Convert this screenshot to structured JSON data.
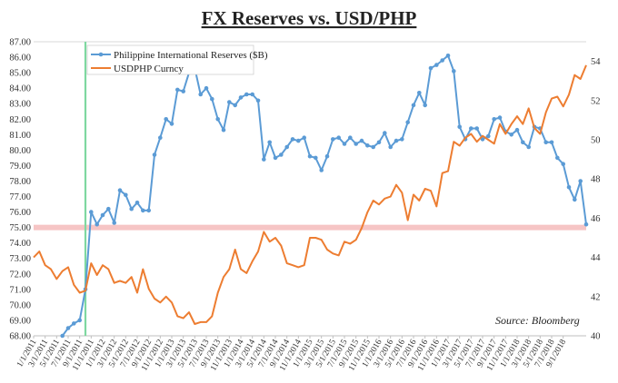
{
  "chart_data": {
    "type": "line",
    "title": "FX Reserves vs. USD/PHP",
    "source_note": "Source: Bloomberg",
    "y_left": {
      "min": 68,
      "max": 87,
      "ticks": [
        "87.00",
        "86.00",
        "85.00",
        "84.00",
        "83.00",
        "82.00",
        "81.00",
        "80.00",
        "79.00",
        "78.00",
        "77.00",
        "76.00",
        "75.00",
        "74.00",
        "73.00",
        "72.00",
        "71.00",
        "70.00",
        "69.00",
        "68.00"
      ]
    },
    "y_right": {
      "min": 40,
      "max": 55,
      "ticks": [
        "54",
        "52",
        "50",
        "48",
        "46",
        "44",
        "42",
        "40"
      ]
    },
    "x_ticks": [
      "1/1/2011",
      "3/1/2011",
      "5/1/2011",
      "7/1/2011",
      "9/1/2011",
      "11/1/2011",
      "1/1/2012",
      "3/1/2012",
      "5/1/2012",
      "7/1/2012",
      "9/1/2012",
      "11/1/2012",
      "1/1/2013",
      "3/1/2013",
      "5/1/2013",
      "7/1/2013",
      "9/1/2013",
      "11/1/2013",
      "1/1/2014",
      "3/1/2014",
      "5/1/2014",
      "7/1/2014",
      "9/1/2014",
      "11/1/2014",
      "1/1/2015",
      "3/1/2015",
      "5/1/2015",
      "7/1/2015",
      "9/1/2015",
      "11/1/2015",
      "1/1/2016",
      "3/1/2016",
      "5/1/2016",
      "7/1/2016",
      "9/1/2016",
      "11/1/2016",
      "1/1/2017",
      "3/1/2017",
      "5/1/2017",
      "7/1/2017",
      "9/1/2017",
      "11/1/2017",
      "1/1/2018",
      "3/1/2018",
      "5/1/2018",
      "7/1/2018",
      "9/1/2018"
    ],
    "series": [
      {
        "name": "Philippine International Reserves ($B)",
        "axis": "left",
        "color": "#5b9bd5",
        "markers": true,
        "points": [
          [
            5,
            68.0
          ],
          [
            6,
            68.5
          ],
          [
            7,
            68.8
          ],
          [
            8,
            69.0
          ],
          [
            9,
            71.0
          ],
          [
            10,
            76.0
          ],
          [
            11,
            75.2
          ],
          [
            12,
            75.8
          ],
          [
            13,
            76.2
          ],
          [
            14,
            75.3
          ],
          [
            15,
            77.4
          ],
          [
            16,
            77.1
          ],
          [
            17,
            76.2
          ],
          [
            18,
            76.6
          ],
          [
            19,
            76.1
          ],
          [
            20,
            76.1
          ],
          [
            21,
            79.7
          ],
          [
            22,
            80.8
          ],
          [
            23,
            82.0
          ],
          [
            24,
            81.7
          ],
          [
            25,
            83.9
          ],
          [
            26,
            83.8
          ],
          [
            27,
            85.0
          ],
          [
            28,
            85.3
          ],
          [
            29,
            83.6
          ],
          [
            30,
            84.0
          ],
          [
            31,
            83.3
          ],
          [
            32,
            82.0
          ],
          [
            33,
            81.3
          ],
          [
            34,
            83.1
          ],
          [
            35,
            82.9
          ],
          [
            36,
            83.4
          ],
          [
            37,
            83.6
          ],
          [
            38,
            83.6
          ],
          [
            39,
            83.2
          ],
          [
            40,
            79.4
          ],
          [
            41,
            80.5
          ],
          [
            42,
            79.5
          ],
          [
            43,
            79.7
          ],
          [
            44,
            80.2
          ],
          [
            45,
            80.7
          ],
          [
            46,
            80.6
          ],
          [
            47,
            80.8
          ],
          [
            48,
            79.6
          ],
          [
            49,
            79.5
          ],
          [
            50,
            78.7
          ],
          [
            51,
            79.6
          ],
          [
            52,
            80.7
          ],
          [
            53,
            80.8
          ],
          [
            54,
            80.4
          ],
          [
            55,
            80.8
          ],
          [
            56,
            80.4
          ],
          [
            57,
            80.6
          ],
          [
            58,
            80.3
          ],
          [
            59,
            80.2
          ],
          [
            60,
            80.5
          ],
          [
            61,
            81.1
          ],
          [
            62,
            80.2
          ],
          [
            63,
            80.6
          ],
          [
            64,
            80.7
          ],
          [
            65,
            81.8
          ],
          [
            66,
            82.9
          ],
          [
            67,
            83.7
          ],
          [
            68,
            82.9
          ],
          [
            69,
            85.3
          ],
          [
            70,
            85.5
          ],
          [
            71,
            85.8
          ],
          [
            72,
            86.1
          ],
          [
            73,
            85.1
          ],
          [
            74,
            81.5
          ],
          [
            75,
            80.7
          ],
          [
            76,
            81.4
          ],
          [
            77,
            81.4
          ],
          [
            78,
            80.7
          ],
          [
            79,
            80.9
          ],
          [
            80,
            82.0
          ],
          [
            81,
            82.1
          ],
          [
            82,
            81.2
          ],
          [
            83,
            81.0
          ],
          [
            84,
            81.3
          ],
          [
            85,
            80.5
          ],
          [
            86,
            80.2
          ],
          [
            87,
            81.5
          ],
          [
            88,
            81.4
          ],
          [
            89,
            80.5
          ],
          [
            90,
            80.5
          ],
          [
            91,
            79.5
          ],
          [
            92,
            79.1
          ],
          [
            93,
            77.6
          ],
          [
            94,
            76.8
          ],
          [
            95,
            78.0
          ],
          [
            96,
            75.2
          ]
        ]
      },
      {
        "name": "USDPHP Curncy",
        "axis": "right",
        "color": "#ed7d31",
        "markers": false,
        "points": [
          [
            0,
            44.0
          ],
          [
            1,
            44.3
          ],
          [
            2,
            43.6
          ],
          [
            3,
            43.4
          ],
          [
            4,
            42.9
          ],
          [
            5,
            43.3
          ],
          [
            6,
            43.5
          ],
          [
            7,
            42.6
          ],
          [
            8,
            42.2
          ],
          [
            9,
            42.3
          ],
          [
            10,
            43.7
          ],
          [
            11,
            43.1
          ],
          [
            12,
            43.6
          ],
          [
            13,
            43.4
          ],
          [
            14,
            42.7
          ],
          [
            15,
            42.8
          ],
          [
            16,
            42.7
          ],
          [
            17,
            43.0
          ],
          [
            18,
            42.2
          ],
          [
            19,
            43.4
          ],
          [
            20,
            42.4
          ],
          [
            21,
            41.9
          ],
          [
            22,
            41.7
          ],
          [
            23,
            42.0
          ],
          [
            24,
            41.7
          ],
          [
            25,
            41.0
          ],
          [
            26,
            40.9
          ],
          [
            27,
            41.2
          ],
          [
            28,
            40.6
          ],
          [
            29,
            40.7
          ],
          [
            30,
            40.7
          ],
          [
            31,
            41.0
          ],
          [
            32,
            42.2
          ],
          [
            33,
            43.0
          ],
          [
            34,
            43.4
          ],
          [
            35,
            44.4
          ],
          [
            36,
            43.4
          ],
          [
            37,
            43.2
          ],
          [
            38,
            43.8
          ],
          [
            39,
            44.3
          ],
          [
            40,
            45.3
          ],
          [
            41,
            44.8
          ],
          [
            42,
            45.0
          ],
          [
            43,
            44.6
          ],
          [
            44,
            43.7
          ],
          [
            45,
            43.6
          ],
          [
            46,
            43.5
          ],
          [
            47,
            43.6
          ],
          [
            48,
            45.0
          ],
          [
            49,
            45.0
          ],
          [
            50,
            44.9
          ],
          [
            51,
            44.4
          ],
          [
            52,
            44.2
          ],
          [
            53,
            44.1
          ],
          [
            54,
            44.8
          ],
          [
            55,
            44.7
          ],
          [
            56,
            44.9
          ],
          [
            57,
            45.5
          ],
          [
            58,
            46.3
          ],
          [
            59,
            46.9
          ],
          [
            60,
            46.7
          ],
          [
            61,
            47.0
          ],
          [
            62,
            47.1
          ],
          [
            63,
            47.7
          ],
          [
            64,
            47.3
          ],
          [
            65,
            45.9
          ],
          [
            66,
            47.2
          ],
          [
            67,
            46.9
          ],
          [
            68,
            47.5
          ],
          [
            69,
            47.4
          ],
          [
            70,
            46.6
          ],
          [
            71,
            48.3
          ],
          [
            72,
            48.4
          ],
          [
            73,
            49.9
          ],
          [
            74,
            49.7
          ],
          [
            75,
            50.1
          ],
          [
            76,
            50.3
          ],
          [
            77,
            49.9
          ],
          [
            78,
            50.2
          ],
          [
            79,
            50.0
          ],
          [
            80,
            49.8
          ],
          [
            81,
            50.8
          ],
          [
            82,
            50.3
          ],
          [
            83,
            50.8
          ],
          [
            84,
            51.2
          ],
          [
            85,
            50.8
          ],
          [
            86,
            51.6
          ],
          [
            87,
            50.6
          ],
          [
            88,
            50.3
          ],
          [
            89,
            51.4
          ],
          [
            90,
            52.1
          ],
          [
            91,
            52.2
          ],
          [
            92,
            51.7
          ],
          [
            93,
            52.3
          ],
          [
            94,
            53.3
          ],
          [
            95,
            53.1
          ],
          [
            96,
            53.8
          ]
        ]
      }
    ],
    "annotations": {
      "vertical_marker_x": 9,
      "horizontal_band_y_left": 75.0,
      "vertical_marker_color": "#7fd8a0",
      "horizontal_band_color": "#f4b6b6"
    },
    "legend_position": "top-left"
  }
}
